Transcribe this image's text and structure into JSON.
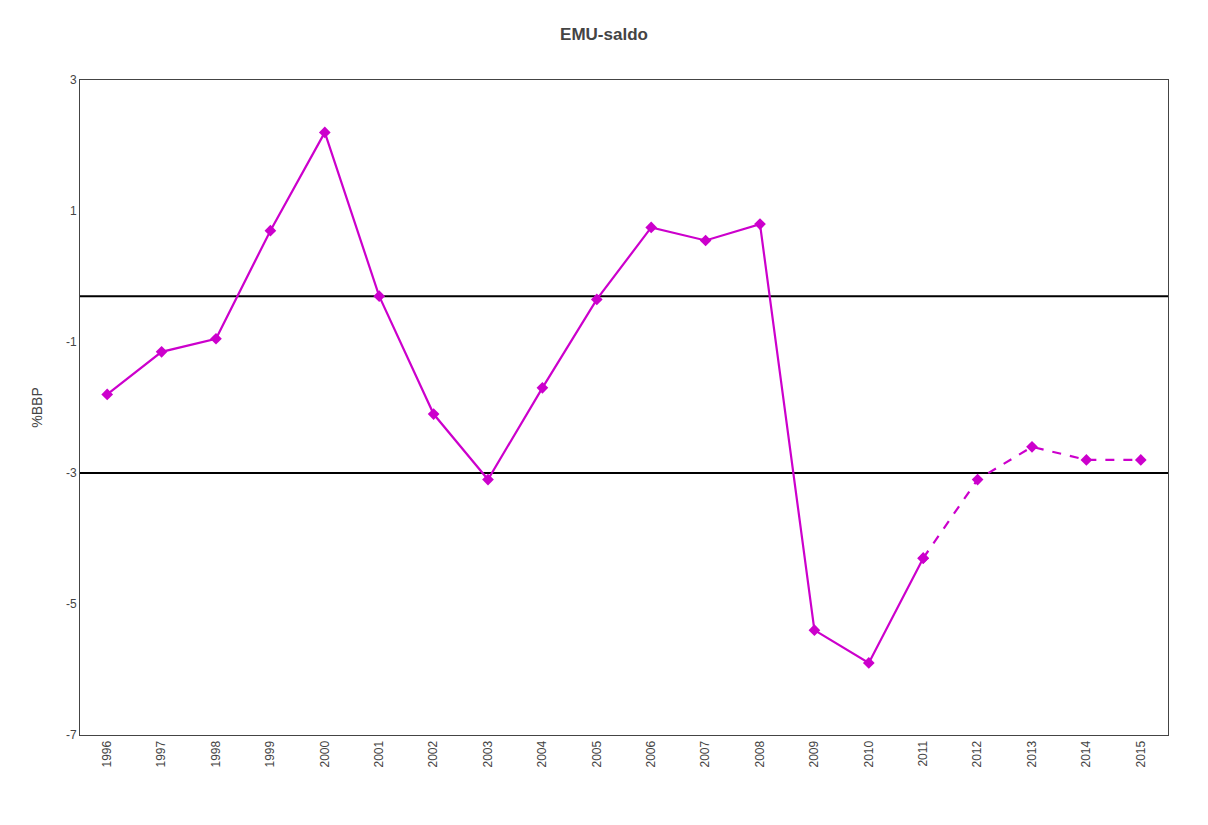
{
  "chart_data": {
    "type": "line",
    "title": "EMU-saldo",
    "ylabel": "%BBP",
    "series": [
      {
        "x": [
          1996,
          1997,
          1998,
          1999,
          2000,
          2001,
          2002,
          2003,
          2004,
          2005,
          2006,
          2007,
          2008,
          2009,
          2010,
          2011
        ],
        "values": [
          -1.8,
          -1.15,
          -0.95,
          0.7,
          2.2,
          -0.3,
          -2.1,
          -3.1,
          -1.7,
          -0.35,
          0.75,
          0.55,
          0.8,
          -5.4,
          -5.9,
          -4.3
        ],
        "color": "#CC00CC",
        "marker": "diamond",
        "line_style": "solid"
      },
      {
        "x": [
          2011,
          2012,
          2013,
          2014,
          2015
        ],
        "values": [
          -4.3,
          -3.1,
          -2.6,
          -2.8,
          -2.8
        ],
        "color": "#CC00CC",
        "marker": "diamond",
        "line_style": "dash"
      }
    ],
    "hlines": [
      {
        "value": -0.3,
        "color": "#000000"
      },
      {
        "value": -3.0,
        "color": "#000000"
      }
    ],
    "xlim": [
      1995.5,
      2015.5
    ],
    "xticks": [
      1996,
      1997,
      1998,
      1999,
      2000,
      2001,
      2002,
      2003,
      2004,
      2005,
      2006,
      2007,
      2008,
      2009,
      2010,
      2011,
      2012,
      2013,
      2014,
      2015
    ],
    "ylim": [
      -7,
      3
    ],
    "yticks": [
      -7,
      -5,
      -3,
      -1,
      1,
      3
    ],
    "grid": false
  }
}
